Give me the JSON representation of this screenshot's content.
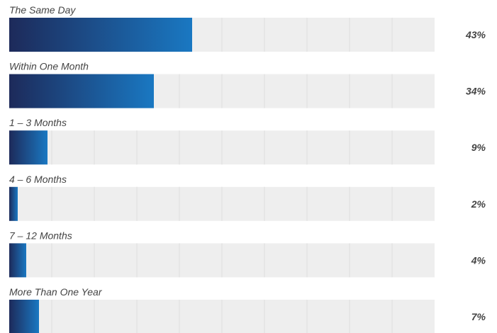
{
  "chart_data": {
    "type": "bar",
    "orientation": "horizontal",
    "categories": [
      "The Same Day",
      "Within One Month",
      "1 – 3 Months",
      "4 – 6 Months",
      "7 – 12 Months",
      "More Than One Year"
    ],
    "values": [
      43,
      34,
      9,
      2,
      4,
      7
    ],
    "value_labels": [
      "43%",
      "34%",
      "9%",
      "2%",
      "4%",
      "7%"
    ],
    "xlim": [
      0,
      100
    ],
    "grid": true,
    "colors": {
      "bar_start": "#1d2a5a",
      "bar_end": "#1a78c2",
      "track": "#eeeeee",
      "gridline": "#dddddd",
      "text": "#444444"
    }
  }
}
